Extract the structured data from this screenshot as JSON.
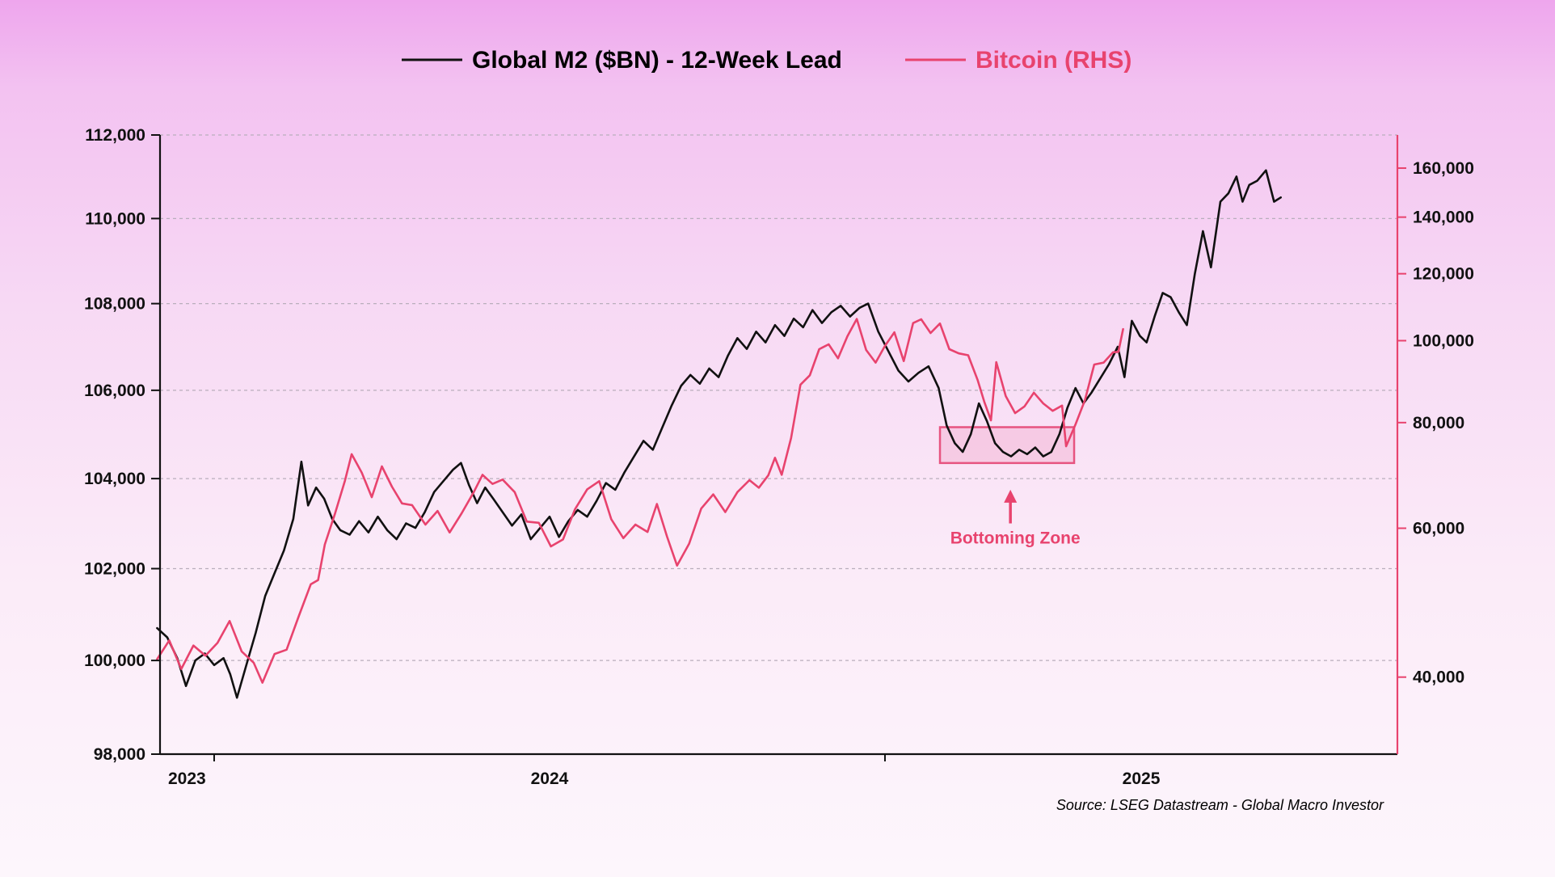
{
  "legend": {
    "m2_label": "Global M2 ($BN) - 12-Week Lead",
    "btc_label": "Bitcoin (RHS)"
  },
  "annotation": {
    "text": "Bottoming Zone"
  },
  "source": {
    "text": "Source: LSEG Datastream - Global Macro Investor"
  },
  "colors": {
    "m2_line": "#111111",
    "btc_line": "#e8436e",
    "btc_axis": "#e8436e",
    "gridline": "#b9aebc",
    "axis_black": "#111111",
    "zone_border": "#e75480",
    "zone_fill": "rgba(238,120,165,0.22)",
    "annotation_pink": "#e8436e"
  },
  "chart_data": {
    "type": "line",
    "x_unit": "years_since_2024-01-01",
    "x_axis": {
      "range": [
        -0.0807,
        1.7639
      ],
      "year_boundary_ticks": [
        0,
        1
      ],
      "year_labels": [
        {
          "label": "2023",
          "t": -0.0405
        },
        {
          "label": "2024",
          "t": 0.5
        },
        {
          "label": "2025",
          "t": 1.382
        }
      ]
    },
    "left_axis": {
      "name": "Global M2 ($BN) - 12-Week Lead",
      "scale": "log",
      "range": [
        98000,
        112000
      ],
      "ticks": [
        98000,
        100000,
        102000,
        104000,
        106000,
        108000,
        110000,
        112000
      ],
      "gridlines": [
        100000,
        102000,
        104000,
        106000,
        108000,
        110000,
        112000
      ]
    },
    "right_axis": {
      "name": "Bitcoin (RHS)",
      "scale": "log",
      "range": [
        32430,
        175100
      ],
      "ticks": [
        40000,
        60000,
        80000,
        100000,
        120000,
        140000,
        160000
      ]
    },
    "bottoming_zone": {
      "t0": 1.082,
      "t1": 1.282,
      "m2_low": 104350,
      "m2_high": 105160,
      "arrow_t": 1.187,
      "arrow_tip_value": 103750,
      "arrow_tail_value": 103000,
      "label_value": 102550
    },
    "series": [
      {
        "name": "Global M2 ($BN) - 12-Week Lead",
        "axis": "left",
        "color": "#111111",
        "points": [
          [
            -0.085,
            100700
          ],
          [
            -0.07,
            100500
          ],
          [
            -0.055,
            100050
          ],
          [
            -0.042,
            99450
          ],
          [
            -0.028,
            100000
          ],
          [
            -0.014,
            100150
          ],
          [
            0.0,
            99900
          ],
          [
            0.014,
            100050
          ],
          [
            0.024,
            99700
          ],
          [
            0.034,
            99200
          ],
          [
            0.048,
            99900
          ],
          [
            0.062,
            100600
          ],
          [
            0.076,
            101400
          ],
          [
            0.09,
            101900
          ],
          [
            0.104,
            102400
          ],
          [
            0.118,
            103100
          ],
          [
            0.13,
            104380
          ],
          [
            0.14,
            103400
          ],
          [
            0.152,
            103800
          ],
          [
            0.164,
            103550
          ],
          [
            0.176,
            103100
          ],
          [
            0.188,
            102850
          ],
          [
            0.202,
            102750
          ],
          [
            0.216,
            103050
          ],
          [
            0.23,
            102800
          ],
          [
            0.244,
            103150
          ],
          [
            0.258,
            102850
          ],
          [
            0.272,
            102650
          ],
          [
            0.286,
            103000
          ],
          [
            0.3,
            102900
          ],
          [
            0.314,
            103250
          ],
          [
            0.328,
            103700
          ],
          [
            0.342,
            103950
          ],
          [
            0.356,
            104200
          ],
          [
            0.368,
            104350
          ],
          [
            0.38,
            103850
          ],
          [
            0.392,
            103450
          ],
          [
            0.404,
            103800
          ],
          [
            0.416,
            103550
          ],
          [
            0.43,
            103250
          ],
          [
            0.444,
            102950
          ],
          [
            0.458,
            103200
          ],
          [
            0.472,
            102650
          ],
          [
            0.486,
            102900
          ],
          [
            0.5,
            103150
          ],
          [
            0.514,
            102700
          ],
          [
            0.528,
            103050
          ],
          [
            0.542,
            103300
          ],
          [
            0.556,
            103150
          ],
          [
            0.57,
            103500
          ],
          [
            0.584,
            103900
          ],
          [
            0.598,
            103750
          ],
          [
            0.612,
            104150
          ],
          [
            0.626,
            104500
          ],
          [
            0.64,
            104850
          ],
          [
            0.654,
            104650
          ],
          [
            0.668,
            105150
          ],
          [
            0.682,
            105650
          ],
          [
            0.696,
            106100
          ],
          [
            0.71,
            106350
          ],
          [
            0.724,
            106150
          ],
          [
            0.738,
            106500
          ],
          [
            0.752,
            106300
          ],
          [
            0.766,
            106800
          ],
          [
            0.78,
            107200
          ],
          [
            0.794,
            106950
          ],
          [
            0.808,
            107350
          ],
          [
            0.822,
            107100
          ],
          [
            0.836,
            107500
          ],
          [
            0.85,
            107250
          ],
          [
            0.864,
            107650
          ],
          [
            0.878,
            107450
          ],
          [
            0.892,
            107850
          ],
          [
            0.906,
            107550
          ],
          [
            0.92,
            107800
          ],
          [
            0.934,
            107950
          ],
          [
            0.948,
            107700
          ],
          [
            0.962,
            107900
          ],
          [
            0.975,
            108000
          ],
          [
            0.99,
            107350
          ],
          [
            1.005,
            106900
          ],
          [
            1.02,
            106450
          ],
          [
            1.035,
            106200
          ],
          [
            1.05,
            106400
          ],
          [
            1.065,
            106550
          ],
          [
            1.08,
            106050
          ],
          [
            1.092,
            105200
          ],
          [
            1.104,
            104800
          ],
          [
            1.116,
            104600
          ],
          [
            1.128,
            105000
          ],
          [
            1.14,
            105700
          ],
          [
            1.152,
            105300
          ],
          [
            1.164,
            104800
          ],
          [
            1.176,
            104600
          ],
          [
            1.188,
            104500
          ],
          [
            1.2,
            104650
          ],
          [
            1.212,
            104550
          ],
          [
            1.224,
            104700
          ],
          [
            1.236,
            104500
          ],
          [
            1.248,
            104600
          ],
          [
            1.26,
            105000
          ],
          [
            1.272,
            105600
          ],
          [
            1.284,
            106050
          ],
          [
            1.296,
            105700
          ],
          [
            1.308,
            105950
          ],
          [
            1.32,
            106250
          ],
          [
            1.334,
            106600
          ],
          [
            1.347,
            107000
          ],
          [
            1.357,
            106300
          ],
          [
            1.368,
            107600
          ],
          [
            1.38,
            107250
          ],
          [
            1.39,
            107100
          ],
          [
            1.402,
            107700
          ],
          [
            1.414,
            108250
          ],
          [
            1.426,
            108150
          ],
          [
            1.438,
            107800
          ],
          [
            1.45,
            107500
          ],
          [
            1.462,
            108700
          ],
          [
            1.474,
            109700
          ],
          [
            1.486,
            108850
          ],
          [
            1.5,
            110400
          ],
          [
            1.512,
            110600
          ],
          [
            1.524,
            111000
          ],
          [
            1.533,
            110400
          ],
          [
            1.543,
            110800
          ],
          [
            1.555,
            110900
          ],
          [
            1.568,
            111150
          ],
          [
            1.58,
            110400
          ],
          [
            1.59,
            110500
          ]
        ]
      },
      {
        "name": "Bitcoin (RHS)",
        "axis": "right",
        "color": "#e8436e",
        "points": [
          [
            -0.085,
            42000
          ],
          [
            -0.067,
            44200
          ],
          [
            -0.049,
            40900
          ],
          [
            -0.031,
            43600
          ],
          [
            -0.013,
            42400
          ],
          [
            0.005,
            43900
          ],
          [
            0.023,
            46600
          ],
          [
            0.041,
            42900
          ],
          [
            0.059,
            41600
          ],
          [
            0.072,
            39400
          ],
          [
            0.09,
            42600
          ],
          [
            0.108,
            43100
          ],
          [
            0.126,
            47200
          ],
          [
            0.144,
            51500
          ],
          [
            0.155,
            52100
          ],
          [
            0.165,
            57400
          ],
          [
            0.18,
            62400
          ],
          [
            0.195,
            68300
          ],
          [
            0.205,
            73400
          ],
          [
            0.22,
            69800
          ],
          [
            0.235,
            65300
          ],
          [
            0.25,
            71000
          ],
          [
            0.265,
            67200
          ],
          [
            0.28,
            64200
          ],
          [
            0.295,
            63900
          ],
          [
            0.315,
            60600
          ],
          [
            0.333,
            62900
          ],
          [
            0.351,
            59300
          ],
          [
            0.369,
            62500
          ],
          [
            0.387,
            66200
          ],
          [
            0.4,
            69400
          ],
          [
            0.415,
            67700
          ],
          [
            0.43,
            68500
          ],
          [
            0.448,
            66200
          ],
          [
            0.466,
            61100
          ],
          [
            0.484,
            60900
          ],
          [
            0.502,
            57100
          ],
          [
            0.52,
            58200
          ],
          [
            0.538,
            63200
          ],
          [
            0.556,
            66700
          ],
          [
            0.574,
            68200
          ],
          [
            0.592,
            61500
          ],
          [
            0.61,
            58400
          ],
          [
            0.628,
            60600
          ],
          [
            0.646,
            59400
          ],
          [
            0.66,
            64100
          ],
          [
            0.675,
            58700
          ],
          [
            0.69,
            54200
          ],
          [
            0.708,
            57500
          ],
          [
            0.726,
            63300
          ],
          [
            0.744,
            65800
          ],
          [
            0.762,
            62700
          ],
          [
            0.78,
            66200
          ],
          [
            0.798,
            68400
          ],
          [
            0.812,
            67000
          ],
          [
            0.826,
            69300
          ],
          [
            0.836,
            72700
          ],
          [
            0.846,
            69400
          ],
          [
            0.86,
            76700
          ],
          [
            0.874,
            88700
          ],
          [
            0.888,
            91000
          ],
          [
            0.902,
            97700
          ],
          [
            0.916,
            99000
          ],
          [
            0.93,
            95300
          ],
          [
            0.944,
            101200
          ],
          [
            0.958,
            106100
          ],
          [
            0.972,
            97500
          ],
          [
            0.986,
            94200
          ],
          [
            1.0,
            98600
          ],
          [
            1.014,
            102300
          ],
          [
            1.028,
            94600
          ],
          [
            1.042,
            104900
          ],
          [
            1.054,
            106000
          ],
          [
            1.068,
            102100
          ],
          [
            1.082,
            104800
          ],
          [
            1.096,
            97700
          ],
          [
            1.11,
            96600
          ],
          [
            1.124,
            96100
          ],
          [
            1.138,
            89900
          ],
          [
            1.148,
            84700
          ],
          [
            1.158,
            80500
          ],
          [
            1.166,
            94300
          ],
          [
            1.18,
            86000
          ],
          [
            1.194,
            82100
          ],
          [
            1.208,
            83600
          ],
          [
            1.222,
            86800
          ],
          [
            1.236,
            84300
          ],
          [
            1.25,
            82600
          ],
          [
            1.264,
            83800
          ],
          [
            1.27,
            75000
          ],
          [
            1.284,
            79600
          ],
          [
            1.298,
            85000
          ],
          [
            1.312,
            93700
          ],
          [
            1.326,
            94200
          ],
          [
            1.34,
            96900
          ],
          [
            1.348,
            97000
          ],
          [
            1.355,
            103200
          ]
        ]
      }
    ]
  }
}
